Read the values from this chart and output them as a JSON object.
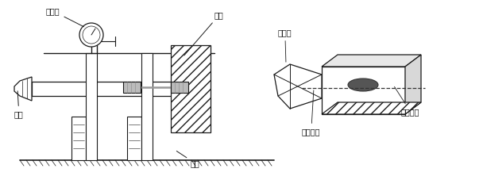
{
  "title": "",
  "bg_color": "#ffffff",
  "line_color": "#1a1a1a",
  "label_color": "#111111",
  "labels": {
    "baifenbiao": "百分表",
    "liangzhi": "量值",
    "yuangui": "圆规",
    "chilun": "齿轮",
    "niahezhongxian": "啮合中线",
    "jiechudian": "接触斑点",
    "niahemian": "啮合面"
  },
  "fig_width": 6.08,
  "fig_height": 2.27,
  "dpi": 100
}
